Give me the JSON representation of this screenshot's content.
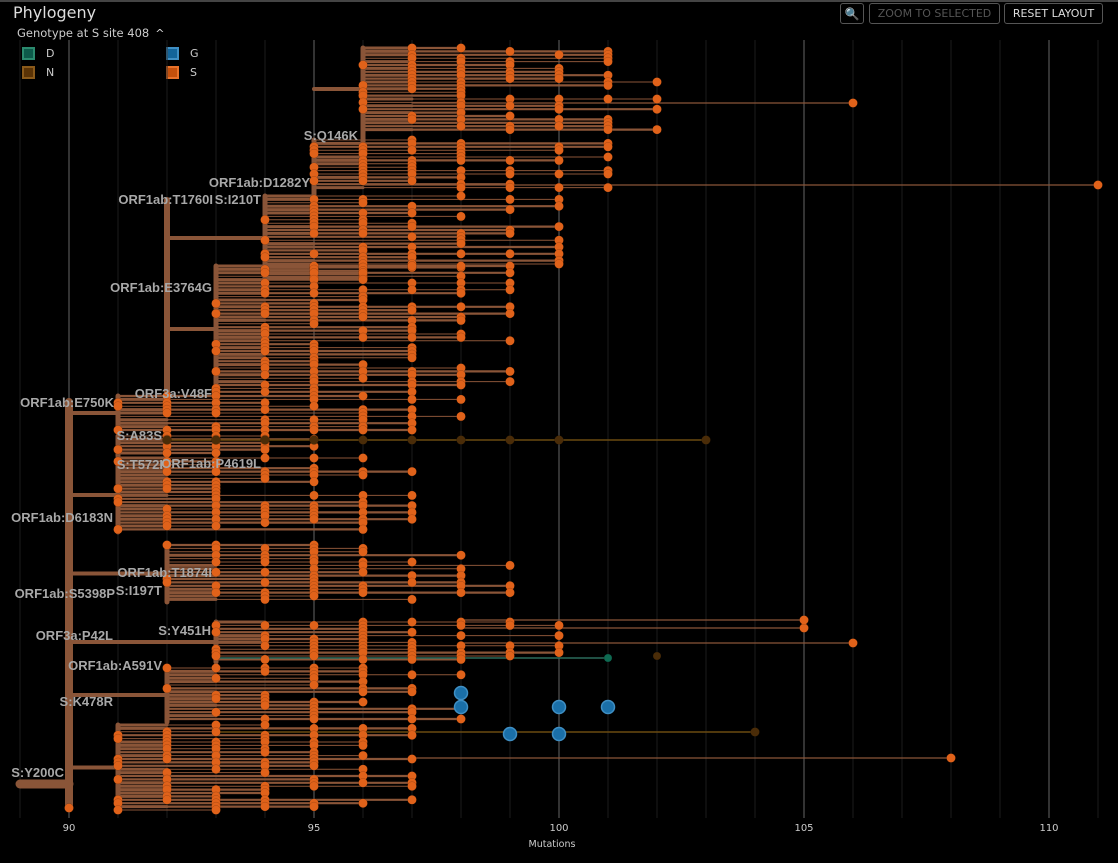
{
  "panel": {
    "title": "Phylogeny"
  },
  "legend": {
    "title": "Genotype at S site 408",
    "items": [
      {
        "label": "D",
        "fill": "#0d5a4a",
        "stroke": "#2b8a6e"
      },
      {
        "label": "G",
        "fill": "#12649a",
        "stroke": "#3f8fc4"
      },
      {
        "label": "N",
        "fill": "#5a3306",
        "stroke": "#8a5a1a"
      },
      {
        "label": "S",
        "fill": "#c4500c",
        "stroke": "#e8722a"
      }
    ]
  },
  "toolbar": {
    "zoom_icon": "zoom-out-magnifier-icon",
    "zoom_to_selected": "ZOOM TO SELECTED",
    "reset_layout": "RESET LAYOUT"
  },
  "axis": {
    "label": "Mutations",
    "range": [
      90,
      111
    ],
    "ticks": [
      "90",
      "95",
      "100",
      "105",
      "110"
    ]
  },
  "colors": {
    "branch": "#8a5538",
    "tip_S": "#e0621a",
    "tip_G": "#1a6fa8",
    "tip_N": "#4a2c08",
    "tip_D": "#0f6a52",
    "background": "#000000"
  },
  "clade_labels": [
    "S:Q146K",
    "ORF1ab:D1282Y",
    "ORF1ab:T1760I",
    "S:I210T",
    "ORF1ab:E3764G",
    "ORF3a:V48F",
    "ORF1ab:E750K",
    "S:A83S",
    "S:T572I",
    "ORF1ab:P4619L",
    "ORF1ab:D6183N",
    "ORF1ab:T1874I",
    "ORF1ab:S5398P",
    "S:I197T",
    "ORF3a:P42L",
    "S:Y451H",
    "ORF1ab:A591V",
    "S:K478R",
    "S:Y200C"
  ]
}
